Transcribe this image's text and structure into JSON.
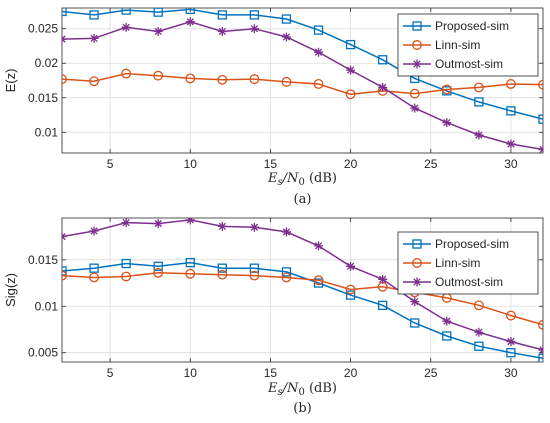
{
  "chart_data": [
    {
      "type": "line",
      "caption": "(a)",
      "xlabel_main": "E",
      "xlabel_sub1": "s",
      "xlabel_mid": "/N",
      "xlabel_sub2": "0",
      "xlabel_unit": " (dB)",
      "ylabel": "E(z)",
      "xlim": [
        2,
        32
      ],
      "ylim": [
        0.007,
        0.028
      ],
      "x_ticks": [
        5,
        10,
        15,
        20,
        25,
        30
      ],
      "y_ticks": [
        0.01,
        0.015,
        0.02,
        0.025
      ],
      "y_tick_labels": [
        "0.01",
        "0.015",
        "0.02",
        "0.025"
      ],
      "grid": true,
      "legend_position": "top-right",
      "x": [
        2,
        4,
        6,
        8,
        10,
        12,
        14,
        16,
        18,
        20,
        22,
        24,
        26,
        28,
        30,
        32
      ],
      "series": [
        {
          "name": "Proposed-sim",
          "color": "#0072BD",
          "marker": "square",
          "values": [
            0.0275,
            0.027,
            0.0277,
            0.0274,
            0.0278,
            0.027,
            0.027,
            0.0264,
            0.0248,
            0.0227,
            0.0205,
            0.0178,
            0.016,
            0.0144,
            0.0131,
            0.0119
          ]
        },
        {
          "name": "Linn-sim",
          "color": "#D95319",
          "marker": "circle",
          "values": [
            0.0177,
            0.0174,
            0.0185,
            0.0182,
            0.0178,
            0.0176,
            0.0177,
            0.0173,
            0.017,
            0.0155,
            0.016,
            0.0156,
            0.0162,
            0.0165,
            0.017,
            0.0169
          ]
        },
        {
          "name": "Outmost-sim",
          "color": "#7E2F8E",
          "marker": "star",
          "values": [
            0.0235,
            0.0236,
            0.0252,
            0.0246,
            0.026,
            0.0246,
            0.025,
            0.0238,
            0.0216,
            0.019,
            0.0165,
            0.0135,
            0.0114,
            0.0096,
            0.0083,
            0.0075
          ]
        }
      ]
    },
    {
      "type": "line",
      "caption": "(b)",
      "xlabel_main": "E",
      "xlabel_sub1": "s",
      "xlabel_mid": "/N",
      "xlabel_sub2": "0",
      "xlabel_unit": " (dB)",
      "ylabel": "Sig(z)",
      "xlim": [
        2,
        32
      ],
      "ylim": [
        0.004,
        0.0195
      ],
      "x_ticks": [
        5,
        10,
        15,
        20,
        25,
        30
      ],
      "y_ticks": [
        0.005,
        0.01,
        0.015
      ],
      "y_tick_labels": [
        "0.005",
        "0.01",
        "0.015"
      ],
      "grid": true,
      "legend_position": "top-right",
      "x": [
        2,
        4,
        6,
        8,
        10,
        12,
        14,
        16,
        18,
        20,
        22,
        24,
        26,
        28,
        30,
        32
      ],
      "series": [
        {
          "name": "Proposed-sim",
          "color": "#0072BD",
          "marker": "square",
          "values": [
            0.0138,
            0.0141,
            0.0146,
            0.0143,
            0.0147,
            0.0141,
            0.0141,
            0.0137,
            0.0125,
            0.0112,
            0.0101,
            0.0082,
            0.0068,
            0.0057,
            0.005,
            0.0044
          ]
        },
        {
          "name": "Linn-sim",
          "color": "#D95319",
          "marker": "circle",
          "values": [
            0.0133,
            0.0131,
            0.0132,
            0.0136,
            0.0135,
            0.0134,
            0.0133,
            0.0131,
            0.0128,
            0.0118,
            0.0121,
            0.0115,
            0.0109,
            0.0101,
            0.009,
            0.008
          ]
        },
        {
          "name": "Outmost-sim",
          "color": "#7E2F8E",
          "marker": "star",
          "values": [
            0.0175,
            0.0181,
            0.019,
            0.0189,
            0.0193,
            0.0186,
            0.0185,
            0.018,
            0.0165,
            0.0143,
            0.0129,
            0.0105,
            0.0084,
            0.0072,
            0.0062,
            0.0053
          ]
        }
      ]
    }
  ]
}
